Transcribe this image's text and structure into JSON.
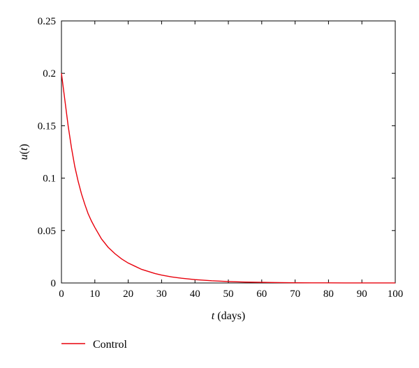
{
  "chart_data": {
    "type": "line",
    "title": "",
    "xlabel_var": "t",
    "xlabel_unit": "(days)",
    "ylabel_var": "u",
    "ylabel_paren_open": "(",
    "ylabel_arg": "t",
    "ylabel_paren_close": ")",
    "xlim": [
      0,
      100
    ],
    "ylim": [
      0,
      0.25
    ],
    "xticks": [
      "0",
      "10",
      "20",
      "30",
      "40",
      "50",
      "60",
      "70",
      "80",
      "90",
      "100"
    ],
    "yticks": [
      "0",
      "0.05",
      "0.1",
      "0.15",
      "0.2",
      "0.25"
    ],
    "grid": false,
    "legend_position": "bottom-left",
    "series": [
      {
        "name": "Control",
        "color": "#e8000b",
        "x": [
          0,
          1,
          2,
          3,
          4,
          5,
          6,
          7,
          8,
          9,
          10,
          12,
          14,
          16,
          18,
          20,
          22,
          24,
          26,
          28,
          30,
          33,
          36,
          40,
          45,
          50,
          55,
          60,
          65,
          70,
          75,
          80,
          85,
          90,
          95,
          100
        ],
        "y": [
          0.2,
          0.175,
          0.15,
          0.129,
          0.111,
          0.097,
          0.085,
          0.075,
          0.066,
          0.059,
          0.053,
          0.042,
          0.034,
          0.028,
          0.023,
          0.019,
          0.016,
          0.013,
          0.011,
          0.009,
          0.0075,
          0.0058,
          0.0045,
          0.0032,
          0.0021,
          0.0014,
          0.0009,
          0.0006,
          0.0004,
          0.0002,
          0.0001,
          0.0001,
          5e-05,
          3e-05,
          2e-05,
          1e-05
        ]
      }
    ]
  }
}
